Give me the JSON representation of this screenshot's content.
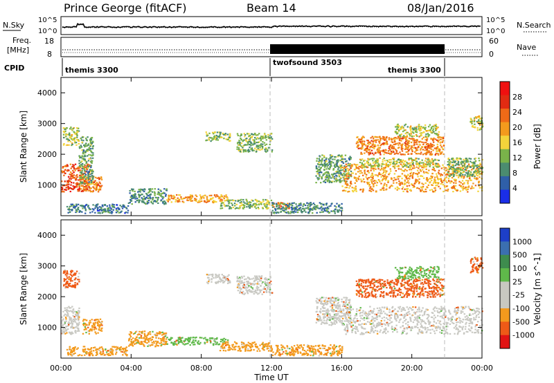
{
  "header": {
    "title": "Prince George (fitACF)",
    "beam": "Beam 14",
    "date": "08/Jan/2016"
  },
  "noise_panel": {
    "left_label": "N.Sky",
    "right_label": "N.Search",
    "tick_top_left": "10^5",
    "tick_bottom_left": "10^0",
    "tick_top_right": "10^5",
    "tick_bottom_right": "10^0"
  },
  "freq_panel": {
    "left_label_1": "Freq.",
    "left_label_2": "[MHz]",
    "right_label": "Nave",
    "tick_top_left": "18",
    "tick_bottom_left": "8",
    "tick_top_right": "60",
    "tick_bottom_right": "0"
  },
  "cpid_panel": {
    "label": "CPID",
    "modes": [
      {
        "name": "themis 3300"
      },
      {
        "name": "twofsound 3503"
      },
      {
        "name": "themis 3300"
      }
    ]
  },
  "colors": {
    "power_scale": [
      "#1a2ee8",
      "#2f5fa8",
      "#4b8c70",
      "#7ab34a",
      "#f3d43b",
      "#f39a1d",
      "#ef6a17",
      "#e12b12",
      "#f01010"
    ],
    "velocity_scale": [
      "#e11414",
      "#ee5a17",
      "#f39a1d",
      "#c8c8c0",
      "#c8c8c0",
      "#5fb94a",
      "#3e8c4e",
      "#3b6fb0",
      "#1d3fc8"
    ],
    "boundary_dash": "#bbbbbb"
  },
  "chart_data": [
    {
      "type": "heatmap",
      "title": "",
      "xlabel": "",
      "ylabel": "Slant Range [km]",
      "x_range_hours": [
        0,
        24
      ],
      "ylim": [
        0,
        4500
      ],
      "ytick_labels": [
        "1000",
        "2000",
        "3000",
        "4000"
      ],
      "yticks": [
        1000,
        2000,
        3000,
        4000
      ],
      "colorbar": {
        "label": "Power [dB]",
        "tick_labels": [
          "4",
          "8",
          "12",
          "16",
          "20",
          "24",
          "28"
        ],
        "ticks": [
          4,
          8,
          12,
          16,
          20,
          24,
          28
        ],
        "range": [
          0,
          32
        ]
      },
      "regions": [
        {
          "t": [
            0.0,
            1.6
          ],
          "r": [
            800,
            1700
          ],
          "level": 26
        },
        {
          "t": [
            0.1,
            1.0
          ],
          "r": [
            2300,
            2900
          ],
          "level": 14
        },
        {
          "t": [
            1.2,
            2.3
          ],
          "r": [
            800,
            1300
          ],
          "level": 22
        },
        {
          "t": [
            1.0,
            1.8
          ],
          "r": [
            1000,
            2600
          ],
          "level": 10
        },
        {
          "t": [
            0.3,
            3.8
          ],
          "r": [
            100,
            400
          ],
          "level": 6
        },
        {
          "t": [
            3.8,
            6.0
          ],
          "r": [
            400,
            900
          ],
          "level": 8
        },
        {
          "t": [
            6.0,
            9.5
          ],
          "r": [
            450,
            700
          ],
          "level": 20
        },
        {
          "t": [
            9.0,
            12.0
          ],
          "r": [
            250,
            550
          ],
          "level": 12
        },
        {
          "t": [
            10.0,
            12.0
          ],
          "r": [
            2100,
            2700
          ],
          "level": 11
        },
        {
          "t": [
            8.2,
            9.6
          ],
          "r": [
            2450,
            2750
          ],
          "level": 12
        },
        {
          "t": [
            12.0,
            13.0
          ],
          "r": [
            250,
            450
          ],
          "level": 22
        },
        {
          "t": [
            12.0,
            16.0
          ],
          "r": [
            100,
            450
          ],
          "level": 7
        },
        {
          "t": [
            14.5,
            16.5
          ],
          "r": [
            1100,
            2000
          ],
          "level": 10
        },
        {
          "t": [
            16.0,
            24.0
          ],
          "r": [
            800,
            1700
          ],
          "level": 20
        },
        {
          "t": [
            17.0,
            21.5
          ],
          "r": [
            1600,
            1900
          ],
          "level": 14
        },
        {
          "t": [
            16.8,
            21.8
          ],
          "r": [
            2000,
            2600
          ],
          "level": 22
        },
        {
          "t": [
            19.0,
            21.5
          ],
          "r": [
            2600,
            3000
          ],
          "level": 14
        },
        {
          "t": [
            22.0,
            24.0
          ],
          "r": [
            1300,
            1900
          ],
          "level": 12
        },
        {
          "t": [
            23.3,
            24.0
          ],
          "r": [
            2800,
            3300
          ],
          "level": 14
        }
      ]
    },
    {
      "type": "heatmap",
      "title": "",
      "xlabel": "Time UT",
      "ylabel": "Slant Range [km]",
      "x_range_hours": [
        0,
        24
      ],
      "xtick_labels": [
        "00:00",
        "04:00",
        "08:00",
        "12:00",
        "16:00",
        "20:00",
        "00:00"
      ],
      "xticks": [
        0,
        4,
        8,
        12,
        16,
        20,
        24
      ],
      "ylim": [
        0,
        4500
      ],
      "ytick_labels": [
        "1000",
        "2000",
        "3000",
        "4000"
      ],
      "yticks": [
        1000,
        2000,
        3000,
        4000
      ],
      "colorbar": {
        "label": "Velocity [m s^-1]",
        "tick_labels": [
          "-1000",
          "-500",
          "-100",
          "-25",
          "25",
          "100",
          "500",
          "1000"
        ]
      },
      "regions": [
        {
          "t": [
            0.0,
            1.0
          ],
          "r": [
            800,
            1700
          ],
          "level": "ground"
        },
        {
          "t": [
            0.1,
            1.0
          ],
          "r": [
            2300,
            2900
          ],
          "level": "-500"
        },
        {
          "t": [
            1.2,
            2.3
          ],
          "r": [
            800,
            1300
          ],
          "level": "-100"
        },
        {
          "t": [
            0.3,
            3.8
          ],
          "r": [
            100,
            400
          ],
          "level": "-100"
        },
        {
          "t": [
            3.8,
            6.0
          ],
          "r": [
            400,
            900
          ],
          "level": "-100"
        },
        {
          "t": [
            6.0,
            9.5
          ],
          "r": [
            450,
            700
          ],
          "level": "100"
        },
        {
          "t": [
            9.0,
            12.0
          ],
          "r": [
            250,
            550
          ],
          "level": "-100"
        },
        {
          "t": [
            10.0,
            12.0
          ],
          "r": [
            2100,
            2700
          ],
          "level": "ground"
        },
        {
          "t": [
            8.2,
            9.6
          ],
          "r": [
            2450,
            2750
          ],
          "level": "ground"
        },
        {
          "t": [
            12.0,
            16.0
          ],
          "r": [
            100,
            450
          ],
          "level": "-100"
        },
        {
          "t": [
            14.5,
            16.5
          ],
          "r": [
            1100,
            2000
          ],
          "level": "ground"
        },
        {
          "t": [
            16.0,
            24.0
          ],
          "r": [
            800,
            1700
          ],
          "level": "ground"
        },
        {
          "t": [
            16.8,
            21.8
          ],
          "r": [
            2000,
            2600
          ],
          "level": "-500"
        },
        {
          "t": [
            19.0,
            21.5
          ],
          "r": [
            2600,
            3000
          ],
          "level": "100"
        },
        {
          "t": [
            23.3,
            24.0
          ],
          "r": [
            2800,
            3300
          ],
          "level": "-500"
        }
      ]
    }
  ]
}
